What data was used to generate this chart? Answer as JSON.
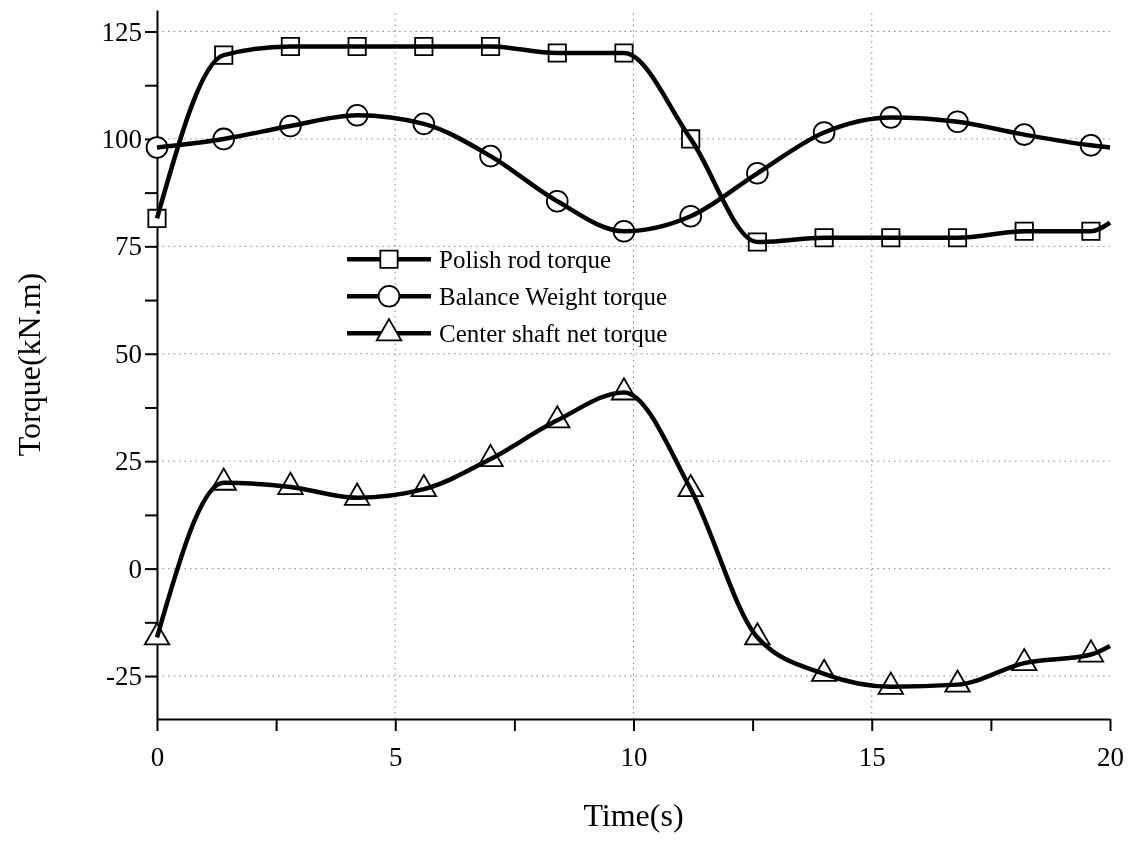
{
  "chart_data": {
    "type": "line",
    "xlabel": "Time(s)",
    "ylabel": "Torque(kN.m)",
    "x": [
      0,
      1.4,
      2.8,
      4.2,
      5.6,
      7.0,
      8.4,
      9.8,
      11.2,
      12.6,
      14.0,
      15.4,
      16.8,
      18.2,
      19.6,
      20
    ],
    "series": [
      {
        "name": "Polish rod torque",
        "color": "#000000",
        "marker": "square",
        "values": [
          81.5,
          119.5,
          121.5,
          121.5,
          121.5,
          121.5,
          120,
          120,
          100,
          76,
          77,
          77,
          77,
          78.5,
          78.5,
          80.5
        ]
      },
      {
        "name": "Balance Weight torque",
        "color": "#000000",
        "marker": "circle",
        "values": [
          98,
          100,
          103,
          105.5,
          103.5,
          96,
          85.5,
          78.5,
          82,
          92,
          101.5,
          105,
          104,
          101,
          98.5,
          98
        ]
      },
      {
        "name": "Center shaft net torque",
        "color": "#000000",
        "marker": "triangle",
        "values": [
          -16,
          20,
          19,
          16.5,
          18.5,
          25.5,
          34.5,
          41,
          18.5,
          -16,
          -24.5,
          -27.5,
          -27,
          -22,
          -20,
          -18
        ]
      }
    ],
    "xlim": [
      0,
      20
    ],
    "xticks": [
      0,
      {
        "value": 2.5,
        "label": null
      },
      5,
      {
        "value": 7.5,
        "label": null
      },
      10,
      {
        "value": 12.5,
        "label": null
      },
      15,
      {
        "value": 17.5,
        "label": null
      },
      20
    ],
    "ylim": [
      -35,
      130
    ],
    "yticks": [
      -25,
      {
        "value": -12.5,
        "label": null
      },
      0,
      {
        "value": 12.5,
        "label": null
      },
      25,
      {
        "value": 37.5,
        "label": null
      },
      50,
      {
        "value": 62.5,
        "label": null
      },
      75,
      {
        "value": 87.5,
        "label": null
      },
      100,
      {
        "value": 112.5,
        "label": null
      },
      125
    ],
    "grid": true,
    "legend": "center left",
    "line_style": "solid"
  }
}
